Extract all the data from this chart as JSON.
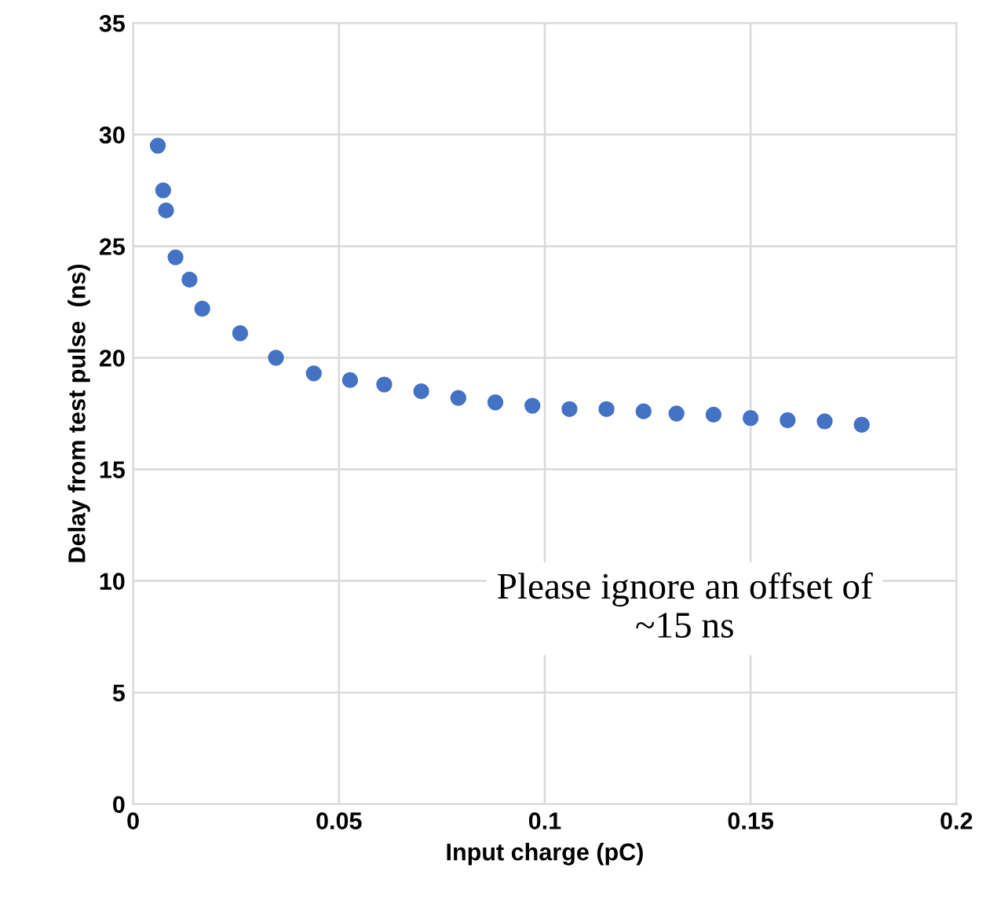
{
  "chart_data": {
    "type": "scatter",
    "xlabel": "Input charge (pC)",
    "ylabel": "Delay from test pulse  (ns)",
    "x": [
      0.006,
      0.0073,
      0.008,
      0.0103,
      0.0137,
      0.0168,
      0.026,
      0.0347,
      0.0439,
      0.0527,
      0.061,
      0.07,
      0.079,
      0.088,
      0.097,
      0.106,
      0.115,
      0.124,
      0.132,
      0.141,
      0.15,
      0.159,
      0.168,
      0.177
    ],
    "series": [
      {
        "color": "#4472c4",
        "values": [
          29.5,
          27.5,
          26.6,
          24.5,
          23.5,
          22.2,
          21.1,
          20.0,
          19.3,
          19.0,
          18.8,
          18.5,
          18.2,
          18.0,
          17.85,
          17.7,
          17.7,
          17.6,
          17.5,
          17.45,
          17.3,
          17.2,
          17.15,
          17.0
        ]
      }
    ],
    "xlim": [
      0,
      0.2
    ],
    "xticks": [
      0,
      0.05,
      0.1,
      0.15,
      0.2
    ],
    "ylim": [
      0,
      35
    ],
    "yticks": [
      0,
      5,
      10,
      15,
      20,
      25,
      30,
      35
    ],
    "grid": true,
    "marker": "circle",
    "legend": false,
    "annotations": [
      "Please ignore an offset of\n~15 ns"
    ]
  }
}
